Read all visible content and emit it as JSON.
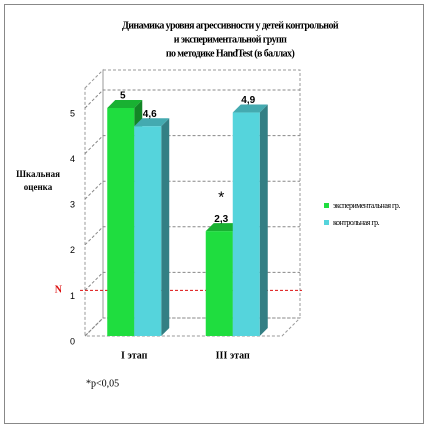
{
  "chart_data": {
    "type": "bar3d",
    "title": [
      "Динамика уровня агрессивности у детей контрольной",
      "и экспериментальной групп",
      "по методике HandTest (в баллах)"
    ],
    "y_label": "Шкальная оценка",
    "categories": [
      "I этап",
      "III этап"
    ],
    "series": [
      {
        "name": "экспериментальная гр.",
        "color": "#1fdd3f",
        "values": [
          5,
          2.3
        ],
        "value_labels": [
          "5",
          "2,3"
        ]
      },
      {
        "name": "контрольная гр.",
        "color": "#55d4dc",
        "values": [
          4.6,
          4.9
        ],
        "value_labels": [
          "4,6",
          "4,9"
        ]
      }
    ],
    "ylim": [
      0,
      5
    ],
    "yticks": [
      0,
      1,
      2,
      3,
      4,
      5
    ],
    "grid": true,
    "reference_line": {
      "value": 1,
      "label": "N",
      "color": "#dd1111"
    },
    "significance_mark": "*",
    "footnote": "*p<0,05",
    "legend": "right"
  }
}
